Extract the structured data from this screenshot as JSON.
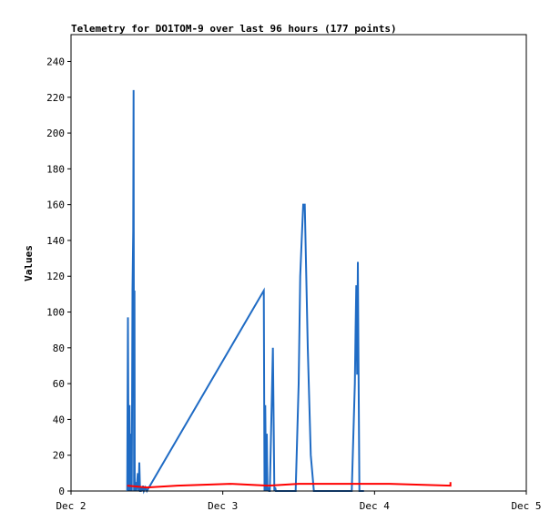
{
  "chart_data": {
    "type": "line",
    "title": "Telemetry for DO1TOM-9 over last 96 hours (177 points)",
    "xlabel": "",
    "ylabel": "Values",
    "xlim": [
      0,
      3
    ],
    "ylim": [
      0,
      255
    ],
    "x_ticks": [
      {
        "value": 0,
        "label": "Dec 2"
      },
      {
        "value": 1,
        "label": "Dec 3"
      },
      {
        "value": 2,
        "label": "Dec 4"
      },
      {
        "value": 3,
        "label": "Dec 5"
      }
    ],
    "y_ticks": [
      0,
      20,
      40,
      60,
      80,
      100,
      120,
      140,
      160,
      180,
      200,
      220,
      240
    ],
    "grid": false,
    "legend": "none",
    "series": [
      {
        "color": "#1f6bc4",
        "x": [
          0.37,
          0.375,
          0.38,
          0.385,
          0.39,
          0.395,
          0.4,
          0.405,
          0.41,
          0.412,
          0.415,
          0.418,
          0.42,
          0.425,
          0.43,
          0.435,
          0.44,
          0.445,
          0.45,
          0.455,
          0.46,
          0.465,
          0.47,
          0.475,
          0.48,
          0.49,
          0.5,
          1.27,
          1.275,
          1.28,
          1.285,
          1.29,
          1.295,
          1.3,
          1.305,
          1.31,
          1.33,
          1.34,
          1.345,
          1.35,
          1.36,
          1.37,
          1.45,
          1.48,
          1.5,
          1.51,
          1.52,
          1.53,
          1.54,
          1.56,
          1.58,
          1.6,
          1.62,
          1.85,
          1.87,
          1.875,
          1.88,
          1.885,
          1.89,
          1.895,
          1.9,
          1.91,
          1.93
        ],
        "y": [
          0,
          97,
          0,
          48,
          0,
          32,
          0,
          112,
          145,
          224,
          0,
          112,
          0,
          5,
          0,
          4,
          10,
          0,
          16,
          0,
          0,
          2,
          0,
          3,
          0,
          2,
          0,
          112,
          0,
          48,
          0,
          32,
          0,
          2,
          0,
          0,
          80,
          0,
          2,
          0,
          0,
          0,
          0,
          0,
          60,
          120,
          140,
          160,
          160,
          80,
          20,
          0,
          0,
          0,
          60,
          90,
          115,
          65,
          128,
          65,
          0,
          0,
          0
        ]
      },
      {
        "color": "#ff0000",
        "x": [
          0.37,
          0.5,
          0.7,
          1.05,
          1.3,
          1.5,
          1.7,
          2.1,
          2.5,
          2.5
        ],
        "y": [
          3,
          2,
          3,
          4,
          3,
          4,
          4,
          4,
          3,
          5
        ]
      },
      {
        "color": "#000000",
        "x": [
          0.37,
          2.5
        ],
        "y": [
          0,
          0
        ]
      }
    ]
  }
}
